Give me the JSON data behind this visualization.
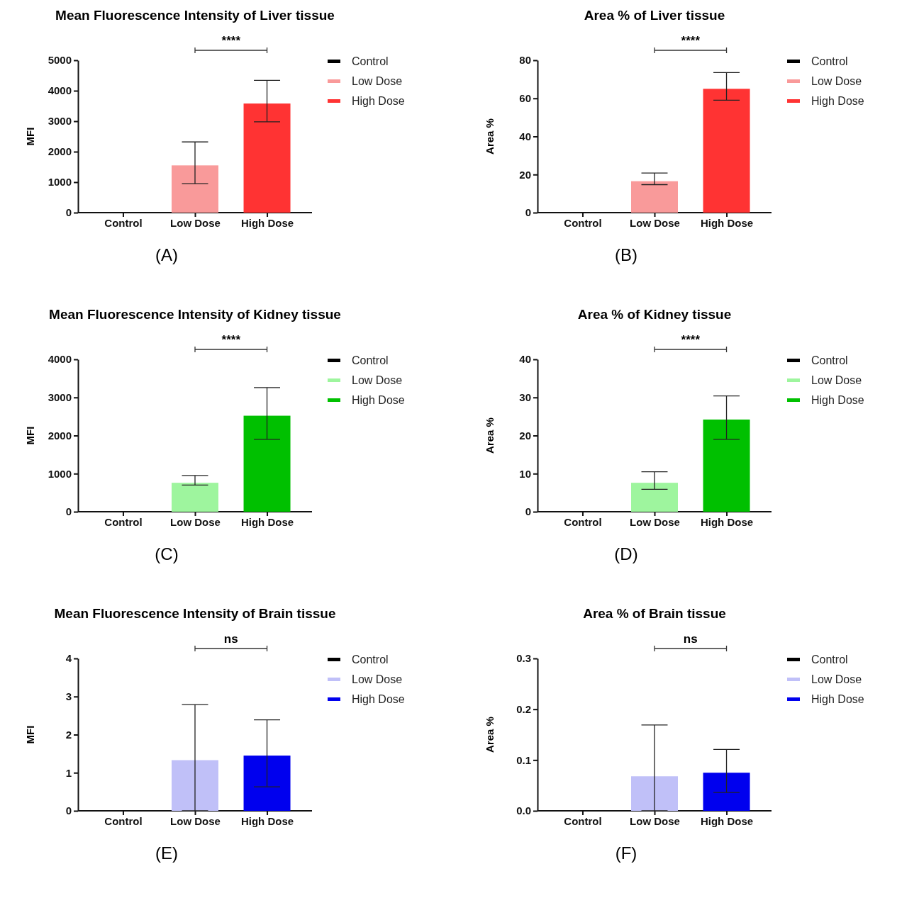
{
  "chart_data": [
    {
      "type": "bar",
      "title": "Mean Fluorescence Intensity of Liver tissue",
      "ylabel": "MFI",
      "categories": [
        "Control",
        "Low Dose",
        "High Dose"
      ],
      "series": [
        {
          "name": "Control",
          "color": "#000000",
          "values": [
            0,
            null,
            null
          ]
        },
        {
          "name": "Low Dose",
          "color": "#f99a9a",
          "values": [
            null,
            1550,
            null
          ],
          "errors": [
            null,
            [
              950,
              2320
            ],
            null
          ]
        },
        {
          "name": "High Dose",
          "color": "#ff3333",
          "values": [
            null,
            null,
            3580
          ],
          "errors": [
            null,
            null,
            [
              2980,
              4340
            ]
          ]
        }
      ],
      "ylim": [
        0,
        5000
      ],
      "yticks": [
        0,
        1000,
        2000,
        3000,
        4000,
        5000
      ],
      "legend": "right",
      "annotations": [
        "****",
        "(A)"
      ]
    },
    {
      "type": "bar",
      "title": "Area % of Liver tissue",
      "ylabel": "Area %",
      "categories": [
        "Control",
        "Low Dose",
        "High Dose"
      ],
      "series": [
        {
          "name": "Control",
          "color": "#000000",
          "values": [
            0,
            null,
            null
          ]
        },
        {
          "name": "Low Dose",
          "color": "#f99a9a",
          "values": [
            null,
            16.5,
            null
          ],
          "errors": [
            null,
            [
              14.7,
              20.8
            ],
            null
          ]
        },
        {
          "name": "High Dose",
          "color": "#ff3333",
          "values": [
            null,
            null,
            65
          ],
          "errors": [
            null,
            null,
            [
              59,
              73.5
            ]
          ]
        }
      ],
      "ylim": [
        0,
        80
      ],
      "yticks": [
        0,
        20,
        40,
        60,
        80
      ],
      "legend": "right",
      "annotations": [
        "****",
        "(B)"
      ]
    },
    {
      "type": "bar",
      "title": "Mean Fluorescence Intensity of Kidney tissue",
      "ylabel": "MFI",
      "categories": [
        "Control",
        "Low Dose",
        "High Dose"
      ],
      "series": [
        {
          "name": "Control",
          "color": "#000000",
          "values": [
            0,
            null,
            null
          ]
        },
        {
          "name": "Low Dose",
          "color": "#9ef59e",
          "values": [
            null,
            760,
            null
          ],
          "errors": [
            null,
            [
              700,
              950
            ],
            null
          ]
        },
        {
          "name": "High Dose",
          "color": "#00c000",
          "values": [
            null,
            null,
            2520
          ],
          "errors": [
            null,
            null,
            [
              1900,
              3260
            ]
          ]
        }
      ],
      "ylim": [
        0,
        4000
      ],
      "yticks": [
        0,
        1000,
        2000,
        3000,
        4000
      ],
      "legend": "right",
      "annotations": [
        "****",
        "(C)"
      ]
    },
    {
      "type": "bar",
      "title": "Area % of Kidney tissue",
      "ylabel": "Area %",
      "categories": [
        "Control",
        "Low Dose",
        "High Dose"
      ],
      "series": [
        {
          "name": "Control",
          "color": "#000000",
          "values": [
            0,
            null,
            null
          ]
        },
        {
          "name": "Low Dose",
          "color": "#9ef59e",
          "values": [
            null,
            7.6,
            null
          ],
          "errors": [
            null,
            [
              5.9,
              10.5
            ],
            null
          ]
        },
        {
          "name": "High Dose",
          "color": "#00c000",
          "values": [
            null,
            null,
            24.2
          ],
          "errors": [
            null,
            null,
            [
              19,
              30.4
            ]
          ]
        }
      ],
      "ylim": [
        0,
        40
      ],
      "yticks": [
        0,
        10,
        20,
        30,
        40
      ],
      "legend": "right",
      "annotations": [
        "****",
        "(D)"
      ]
    },
    {
      "type": "bar",
      "title": "Mean Fluorescence Intensity of Brain tissue",
      "ylabel": "MFI",
      "categories": [
        "Control",
        "Low Dose",
        "High Dose"
      ],
      "series": [
        {
          "name": "Control",
          "color": "#000000",
          "values": [
            0,
            null,
            null
          ]
        },
        {
          "name": "Low Dose",
          "color": "#c0c0f8",
          "values": [
            null,
            1.33,
            null
          ],
          "errors": [
            null,
            [
              0,
              2.79
            ],
            null
          ]
        },
        {
          "name": "High Dose",
          "color": "#0000ee",
          "values": [
            null,
            null,
            1.45
          ],
          "errors": [
            null,
            null,
            [
              0.63,
              2.39
            ]
          ]
        }
      ],
      "ylim": [
        0,
        4
      ],
      "yticks": [
        0,
        1,
        2,
        3,
        4
      ],
      "legend": "right",
      "annotations": [
        "ns",
        "(E)"
      ]
    },
    {
      "type": "bar",
      "title": "Area % of Brain tissue",
      "ylabel": "Area %",
      "categories": [
        "Control",
        "Low Dose",
        "High Dose"
      ],
      "series": [
        {
          "name": "Control",
          "color": "#000000",
          "values": [
            0,
            null,
            null
          ]
        },
        {
          "name": "Low Dose",
          "color": "#c0c0f8",
          "values": [
            null,
            0.068,
            null
          ],
          "errors": [
            null,
            [
              0,
              0.169
            ],
            null
          ]
        },
        {
          "name": "High Dose",
          "color": "#0000ee",
          "values": [
            null,
            null,
            0.075
          ],
          "errors": [
            null,
            null,
            [
              0.036,
              0.121
            ]
          ]
        }
      ],
      "ylim": [
        0,
        0.3
      ],
      "yticks": [
        {
          "value": 0,
          "label": "0.0"
        },
        0.1,
        0.2,
        0.3
      ],
      "legend": "right",
      "annotations": [
        "ns",
        "(F)"
      ]
    }
  ]
}
